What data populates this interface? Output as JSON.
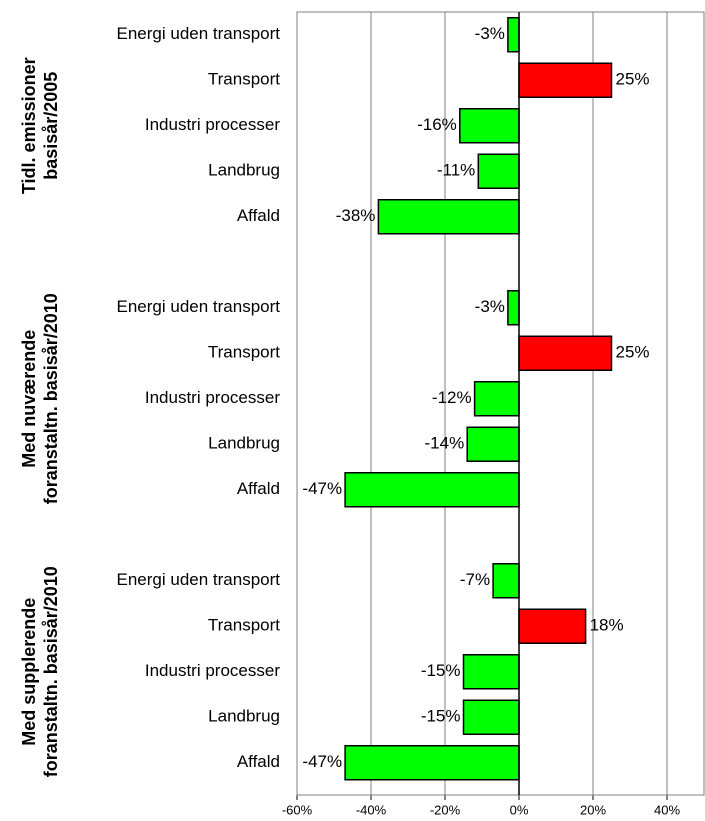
{
  "chart_data": {
    "type": "bar",
    "xlim": [
      -60,
      50
    ],
    "xticks": [
      {
        "value": -60,
        "label": "-60%"
      },
      {
        "value": -40,
        "label": "-40%"
      },
      {
        "value": -20,
        "label": "-20%"
      },
      {
        "value": 0,
        "label": "0%"
      },
      {
        "value": 20,
        "label": "20%"
      },
      {
        "value": 40,
        "label": "40%"
      }
    ],
    "grid": true,
    "groups": [
      {
        "label": [
          "Tidl. emissioner",
          "basisår/2005"
        ],
        "categories": [
          "Energi uden transport",
          "Transport",
          "Industri processer",
          "Landbrug",
          "Affald"
        ],
        "values": [
          -3,
          25,
          -16,
          -11,
          -38
        ],
        "value_labels": [
          "-3%",
          "25%",
          "-16%",
          "-11%",
          "-38%"
        ],
        "colors": [
          "#00ff00",
          "#ff0000",
          "#00ff00",
          "#00ff00",
          "#00ff00"
        ]
      },
      {
        "label": [
          "Med nuværende",
          "foranstaltn. basisår/2010"
        ],
        "categories": [
          "Energi uden transport",
          "Transport",
          "Industri processer",
          "Landbrug",
          "Affald"
        ],
        "values": [
          -3,
          25,
          -12,
          -14,
          -47
        ],
        "value_labels": [
          "-3%",
          "25%",
          "-12%",
          "-14%",
          "-47%"
        ],
        "colors": [
          "#00ff00",
          "#ff0000",
          "#00ff00",
          "#00ff00",
          "#00ff00"
        ]
      },
      {
        "label": [
          "Med supplerende",
          "foranstaltn. basisår/2010"
        ],
        "categories": [
          "Energi uden transport",
          "Transport",
          "Industri processer",
          "Landbrug",
          "Affald"
        ],
        "values": [
          -7,
          18,
          -15,
          -15,
          -47
        ],
        "value_labels": [
          "-7%",
          "18%",
          "-15%",
          "-15%",
          "-47%"
        ],
        "colors": [
          "#00ff00",
          "#ff0000",
          "#00ff00",
          "#00ff00",
          "#00ff00"
        ]
      }
    ]
  }
}
